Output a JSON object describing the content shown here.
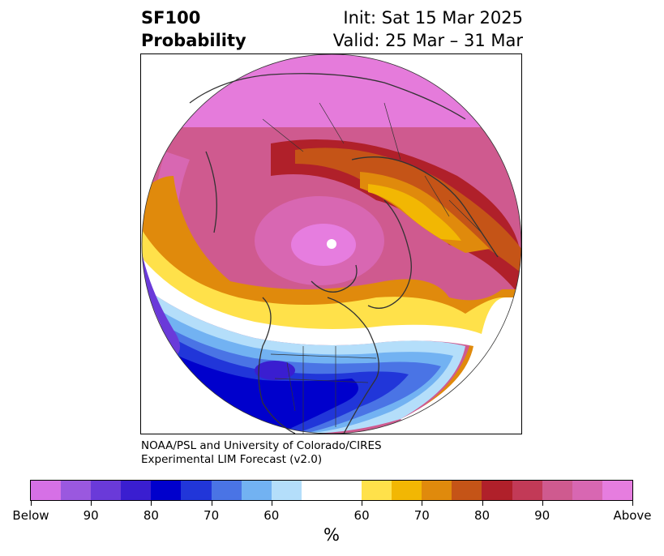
{
  "header": {
    "title_line1": "SF100",
    "title_line2": "Probability",
    "init_text": "Init: Sat 15 Mar 2025",
    "valid_text": "Valid: 25 Mar – 31 Mar"
  },
  "credit": {
    "line1": "NOAA/PSL and University of Colorado/CIRES",
    "line2": "Experimental LIM Forecast (v2.0)"
  },
  "colorbar": {
    "unit": "%",
    "colors": [
      "#d670e6",
      "#9a58df",
      "#6a3ad9",
      "#3a1ed0",
      "#0000cc",
      "#2136d9",
      "#4a74e5",
      "#72b2f2",
      "#b4defa",
      "#ffffff",
      "#ffe14a",
      "#f2b703",
      "#e08a0c",
      "#c55417",
      "#b0202a",
      "#c23a57",
      "#cf5a8f",
      "#d867b2",
      "#e67ddf"
    ],
    "tick_labels": [
      "Below",
      "90",
      "80",
      "70",
      "60",
      "60",
      "70",
      "80",
      "90",
      "Above"
    ]
  },
  "legend_colors": {
    "below_extreme": "#d670e6",
    "above_extreme": "#e67ddf",
    "coastline": "#333333"
  }
}
